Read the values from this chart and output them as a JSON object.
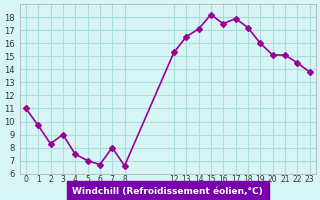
{
  "x": [
    0,
    1,
    2,
    3,
    4,
    5,
    6,
    7,
    8,
    12,
    13,
    14,
    15,
    16,
    17,
    18,
    19,
    20,
    21,
    22,
    23
  ],
  "y": [
    11.0,
    9.7,
    8.3,
    9.0,
    7.5,
    7.0,
    6.7,
    8.0,
    6.6,
    15.3,
    16.5,
    17.1,
    18.2,
    17.5,
    17.9,
    17.2,
    16.0,
    15.1,
    15.1,
    14.5,
    13.8
  ],
  "line_color": "#990099",
  "marker": "D",
  "marker_size": 3,
  "bg_color": "#d8f5f5",
  "grid_color": "#aadddd",
  "xlabel": "Windchill (Refroidissement éolien,°C)",
  "xlabel_color": "#ffffff",
  "xlabel_bg": "#7700aa",
  "ylim": [
    6,
    19
  ],
  "yticks": [
    6,
    7,
    8,
    9,
    10,
    11,
    12,
    13,
    14,
    15,
    16,
    17,
    18
  ],
  "xtick_positions": [
    0,
    1,
    2,
    3,
    4,
    5,
    6,
    7,
    8,
    12,
    13,
    14,
    15,
    16,
    17,
    18,
    19,
    20,
    21,
    22,
    23
  ],
  "xtick_labels": [
    "0",
    "1",
    "2",
    "3",
    "4",
    "5",
    "6",
    "7",
    "8",
    "12",
    "13",
    "14",
    "15",
    "16",
    "17",
    "18",
    "19",
    "20",
    "21",
    "22",
    "23"
  ],
  "line_width": 1.2
}
